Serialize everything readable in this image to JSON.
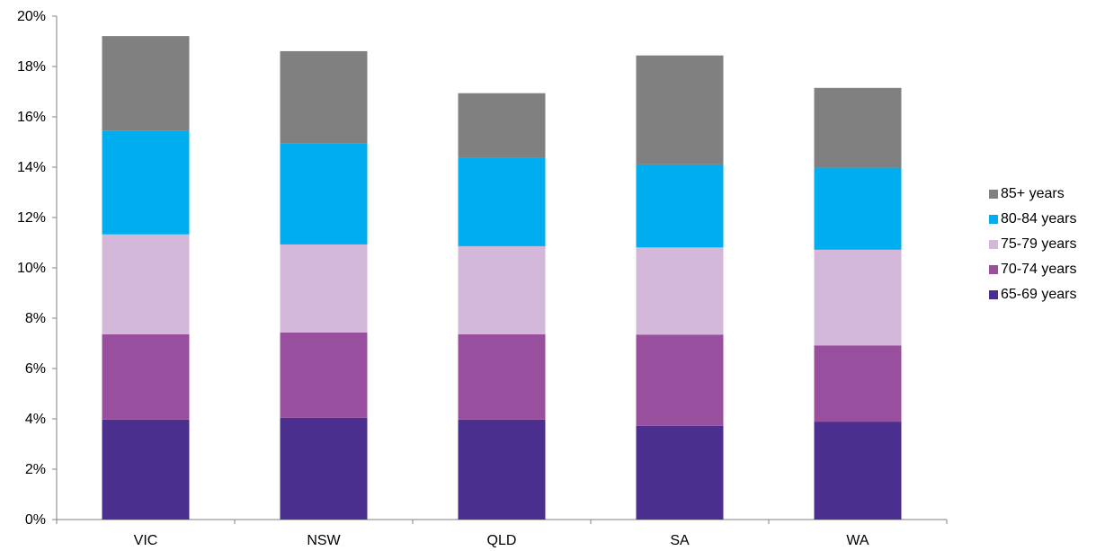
{
  "chart_data": {
    "type": "bar",
    "stacked": true,
    "categories": [
      "VIC",
      "NSW",
      "QLD",
      "SA",
      "WA"
    ],
    "ylim": [
      0,
      20
    ],
    "y_ticks": [
      0,
      2,
      4,
      6,
      8,
      10,
      12,
      14,
      16,
      18,
      20
    ],
    "y_tick_labels": [
      "0%",
      "2%",
      "4%",
      "6%",
      "8%",
      "10%",
      "12%",
      "14%",
      "16%",
      "18%",
      "20%"
    ],
    "grid": false,
    "legend_position": "right",
    "series": [
      {
        "name": "65-69 years",
        "color": "#4b2f8f",
        "values": [
          3.97,
          4.04,
          3.97,
          3.72,
          3.89
        ]
      },
      {
        "name": "70-74 years",
        "color": "#98509e",
        "values": [
          3.39,
          3.39,
          3.39,
          3.63,
          3.03
        ]
      },
      {
        "name": "75-79 years",
        "color": "#d4b8d9",
        "values": [
          3.97,
          3.5,
          3.5,
          3.46,
          3.8
        ]
      },
      {
        "name": "80-84 years",
        "color": "#00aeef",
        "values": [
          4.11,
          4.03,
          3.5,
          3.3,
          3.26
        ]
      },
      {
        "name": "85+ years",
        "color": "#808080",
        "values": [
          3.77,
          3.65,
          2.58,
          4.33,
          3.17
        ]
      }
    ]
  }
}
